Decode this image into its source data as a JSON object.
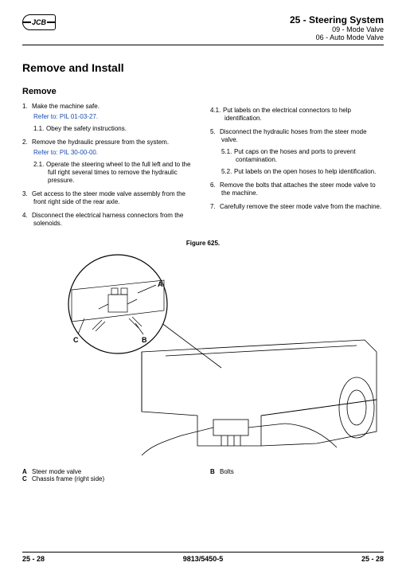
{
  "header": {
    "logo_text": "JCB",
    "section_title": "25 - Steering System",
    "sub1": "09 - Mode Valve",
    "sub2": "06 - Auto Mode Valve"
  },
  "title": "Remove and Install",
  "subtitle": "Remove",
  "left_steps": [
    {
      "n": "1.",
      "text": "Make the machine safe.",
      "ref": "Refer to: PIL 01-03-27.",
      "sub": [
        {
          "n": "1.1.",
          "text": "Obey the safety instructions."
        }
      ]
    },
    {
      "n": "2.",
      "text": "Remove the hydraulic pressure from the system.",
      "ref": "Refer to: PIL 30-00-00.",
      "sub": [
        {
          "n": "2.1.",
          "text": "Operate the steering wheel to the full left and to the full right several times to remove the hydraulic pressure."
        }
      ]
    },
    {
      "n": "3.",
      "text": "Get access to the steer mode valve assembly from the front right side of the rear axle."
    },
    {
      "n": "4.",
      "text": "Disconnect the electrical harness connectors from the solenoids."
    }
  ],
  "right_steps": [
    {
      "sub_only": [
        {
          "n": "4.1.",
          "text": "Put labels on the electrical connectors to help identification."
        }
      ]
    },
    {
      "n": "5.",
      "text": "Disconnect the hydraulic hoses from the steer mode valve.",
      "sub": [
        {
          "n": "5.1.",
          "text": "Put caps on the hoses and ports to prevent contamination."
        },
        {
          "n": "5.2.",
          "text": "Put labels on the open hoses to help identification."
        }
      ]
    },
    {
      "n": "6.",
      "text": "Remove the bolts that attaches the steer mode valve to the machine."
    },
    {
      "n": "7.",
      "text": "Carefully remove the steer mode valve from the machine."
    }
  ],
  "figure_caption": "Figure 625.",
  "legend": {
    "A": "Steer mode valve",
    "B": "Bolts",
    "C": "Chassis frame (right side)"
  },
  "footer": {
    "left": "25 - 28",
    "center": "9813/5450-5",
    "right": "25 - 28"
  }
}
